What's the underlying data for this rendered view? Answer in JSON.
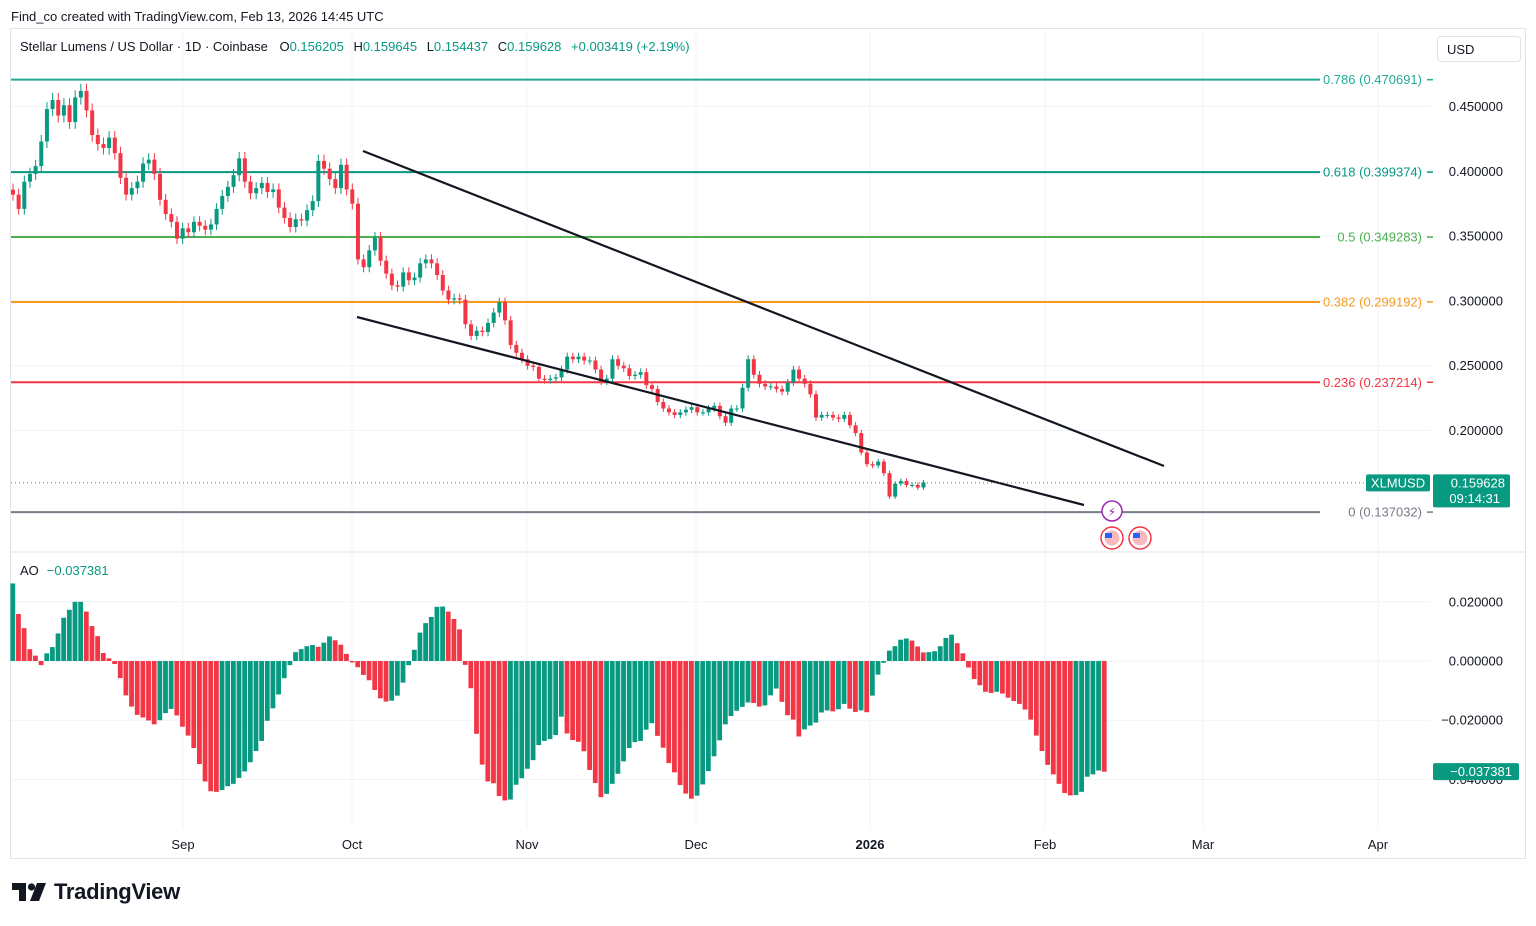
{
  "header": {
    "credit": "Find_co created with TradingView.com, Feb 13, 2026 14:45 UTC"
  },
  "legend": {
    "symbol": "Stellar Lumens / US Dollar · 1D · Coinbase",
    "o_label": "O",
    "o_value": "0.156205",
    "h_label": "H",
    "h_value": "0.159645",
    "l_label": "L",
    "l_value": "0.154437",
    "c_label": "C",
    "c_value": "0.159628",
    "change": "+0.003419 (+2.19%)"
  },
  "currency": "USD",
  "ao_legend": {
    "label": "AO",
    "value": "−0.037381"
  },
  "brand": {
    "name": "TradingView"
  },
  "colors": {
    "up": "#089981",
    "down": "#f23645",
    "accent": "#2962ff"
  },
  "chart_data": [
    {
      "type": "candlestick",
      "symbol": "XLMUSD",
      "price_scale": {
        "ticks": [
          "0.450000",
          "0.400000",
          "0.350000",
          "0.300000",
          "0.250000",
          "0.200000"
        ],
        "ylim": [
          0.125,
          0.485
        ]
      },
      "x_ticks": [
        "Sep",
        "Oct",
        "Nov",
        "Dec",
        "2026",
        "Feb",
        "Mar",
        "Apr"
      ],
      "last_price": {
        "symbol_label": "XLMUSD",
        "price": "0.159628",
        "countdown": "09:14:31"
      },
      "fib_levels": [
        {
          "label": "0.786 (0.470691)",
          "value": 0.470691,
          "color": "#22ab94"
        },
        {
          "label": "0.618 (0.399374)",
          "value": 0.399374,
          "color": "#089981"
        },
        {
          "label": "0.5 (0.349283)",
          "value": 0.349283,
          "color": "#4caf50"
        },
        {
          "label": "0.382 (0.299192)",
          "value": 0.299192,
          "color": "#f89a1f"
        },
        {
          "label": "0.236 (0.237214)",
          "value": 0.237214,
          "color": "#f23645"
        },
        {
          "label": "0 (0.137032)",
          "value": 0.137032,
          "color": "#787b86"
        }
      ],
      "trendlines": [
        {
          "name": "upper",
          "from": [
            "Oct 1 2025",
            0.417
          ],
          "to": [
            "Feb 22 2026",
            0.176
          ]
        },
        {
          "name": "lower",
          "from": [
            "Oct 1 2025",
            0.289
          ],
          "to": [
            "Feb 8 2026",
            0.141
          ]
        }
      ],
      "closes": [
        0.382,
        0.371,
        0.392,
        0.398,
        0.404,
        0.423,
        0.448,
        0.455,
        0.443,
        0.451,
        0.438,
        0.457,
        0.462,
        0.447,
        0.428,
        0.421,
        0.418,
        0.426,
        0.414,
        0.395,
        0.382,
        0.387,
        0.392,
        0.406,
        0.409,
        0.398,
        0.378,
        0.367,
        0.361,
        0.348,
        0.356,
        0.353,
        0.361,
        0.358,
        0.355,
        0.359,
        0.371,
        0.381,
        0.388,
        0.397,
        0.41,
        0.392,
        0.383,
        0.387,
        0.391,
        0.384,
        0.386,
        0.372,
        0.364,
        0.357,
        0.363,
        0.362,
        0.37,
        0.377,
        0.408,
        0.402,
        0.394,
        0.387,
        0.405,
        0.386,
        0.375,
        0.332,
        0.326,
        0.339,
        0.349,
        0.331,
        0.321,
        0.312,
        0.311,
        0.322,
        0.316,
        0.318,
        0.329,
        0.332,
        0.329,
        0.32,
        0.308,
        0.301,
        0.302,
        0.301,
        0.282,
        0.273,
        0.277,
        0.276,
        0.283,
        0.291,
        0.299,
        0.285,
        0.266,
        0.26,
        0.255,
        0.25,
        0.249,
        0.24,
        0.239,
        0.24,
        0.241,
        0.247,
        0.257,
        0.255,
        0.257,
        0.254,
        0.254,
        0.247,
        0.238,
        0.24,
        0.255,
        0.25,
        0.248,
        0.242,
        0.243,
        0.245,
        0.235,
        0.232,
        0.222,
        0.217,
        0.214,
        0.212,
        0.214,
        0.216,
        0.218,
        0.214,
        0.214,
        0.217,
        0.219,
        0.211,
        0.206,
        0.217,
        0.217,
        0.233,
        0.255,
        0.243,
        0.236,
        0.234,
        0.234,
        0.232,
        0.23,
        0.237,
        0.247,
        0.24,
        0.236,
        0.228,
        0.21,
        0.212,
        0.212,
        0.21,
        0.209,
        0.212,
        0.204,
        0.198,
        0.183,
        0.174,
        0.173,
        0.176,
        0.167,
        0.149,
        0.159,
        0.161,
        0.158,
        0.158,
        0.156,
        0.16
      ],
      "ao_panel": {
        "indicator": "AO",
        "ticks": [
          "0.020000",
          "0.000000",
          "−0.020000",
          "−0.040000"
        ],
        "ylim": [
          -0.0545,
          0.028
        ],
        "last_label": "−0.037381",
        "values": [
          0.0262,
          0.0159,
          0.0111,
          0.004,
          0.0018,
          -0.0014,
          0.0026,
          0.0047,
          0.0093,
          0.0146,
          0.0173,
          0.02,
          0.02,
          0.0167,
          0.0118,
          0.0084,
          0.0027,
          0.0009,
          -0.001,
          -0.0058,
          -0.0116,
          -0.0154,
          -0.0182,
          -0.0191,
          -0.0201,
          -0.0214,
          -0.02,
          -0.0176,
          -0.0162,
          -0.0184,
          -0.0222,
          -0.0252,
          -0.0294,
          -0.0348,
          -0.0407,
          -0.044,
          -0.0442,
          -0.0436,
          -0.0423,
          -0.0415,
          -0.0395,
          -0.0373,
          -0.0342,
          -0.0304,
          -0.027,
          -0.0202,
          -0.016,
          -0.0113,
          -0.0058,
          -0.0014,
          0.003,
          0.004,
          0.005,
          0.0054,
          0.0048,
          0.0062,
          0.0083,
          0.007,
          0.0055,
          0.0024,
          -0.0005,
          -0.0021,
          -0.0047,
          -0.0065,
          -0.0098,
          -0.0126,
          -0.0137,
          -0.0134,
          -0.0117,
          -0.0073,
          -0.0014,
          0.0038,
          0.0096,
          0.0128,
          0.0149,
          0.0183,
          0.0184,
          0.0167,
          0.0142,
          0.0107,
          -0.0013,
          -0.0092,
          -0.0246,
          -0.035,
          -0.0407,
          -0.0413,
          -0.0456,
          -0.0471,
          -0.0468,
          -0.0418,
          -0.0396,
          -0.0364,
          -0.0335,
          -0.0284,
          -0.027,
          -0.0264,
          -0.025,
          -0.0188,
          -0.0245,
          -0.0267,
          -0.0273,
          -0.0305,
          -0.0368,
          -0.0412,
          -0.046,
          -0.0449,
          -0.0415,
          -0.0381,
          -0.0339,
          -0.0294,
          -0.0274,
          -0.027,
          -0.0232,
          -0.021,
          -0.0253,
          -0.0293,
          -0.0345,
          -0.0376,
          -0.0419,
          -0.0448,
          -0.0465,
          -0.0455,
          -0.0417,
          -0.0372,
          -0.0322,
          -0.0268,
          -0.0214,
          -0.0186,
          -0.0168,
          -0.0155,
          -0.014,
          -0.0142,
          -0.0154,
          -0.015,
          -0.0116,
          -0.0093,
          -0.0138,
          -0.0183,
          -0.0198,
          -0.0255,
          -0.0231,
          -0.0218,
          -0.0208,
          -0.0174,
          -0.0167,
          -0.017,
          -0.0163,
          -0.0145,
          -0.0161,
          -0.0172,
          -0.0167,
          -0.0173,
          -0.0117,
          -0.0046,
          -0.0006,
          0.0035,
          0.005,
          0.0072,
          0.0076,
          0.0069,
          0.0049,
          0.0029,
          0.003,
          0.0033,
          0.005,
          0.0078,
          0.0089,
          0.006,
          0.0026,
          -0.0022,
          -0.0061,
          -0.0082,
          -0.0104,
          -0.0108,
          -0.0104,
          -0.011,
          -0.0124,
          -0.0135,
          -0.0145,
          -0.0164,
          -0.0198,
          -0.0252,
          -0.0304,
          -0.0351,
          -0.0383,
          -0.0415,
          -0.0446,
          -0.0454,
          -0.0453,
          -0.0442,
          -0.0391,
          -0.0383,
          -0.037,
          -0.0374
        ]
      }
    }
  ]
}
